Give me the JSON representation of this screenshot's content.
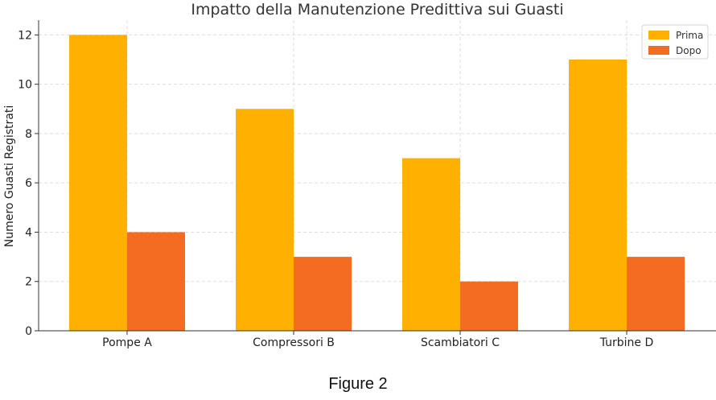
{
  "chart_data": {
    "type": "bar",
    "title": "Impatto della Manutenzione Predittiva sui Guasti",
    "xlabel": "",
    "ylabel": "Numero Guasti Registrati",
    "categories": [
      "Pompe A",
      "Compressori B",
      "Scambiatori C",
      "Turbine D"
    ],
    "series": [
      {
        "name": "Prima",
        "values": [
          12,
          9,
          7,
          11
        ],
        "color": "#FFB000"
      },
      {
        "name": "Dopo",
        "values": [
          4,
          3,
          2,
          3
        ],
        "color": "#F46B22"
      }
    ],
    "ylim": [
      0,
      12.6
    ],
    "yticks": [
      "0",
      "2",
      "4",
      "6",
      "8",
      "10",
      "12"
    ],
    "grid": true,
    "legend": "top-right"
  },
  "caption": "Figure 2"
}
